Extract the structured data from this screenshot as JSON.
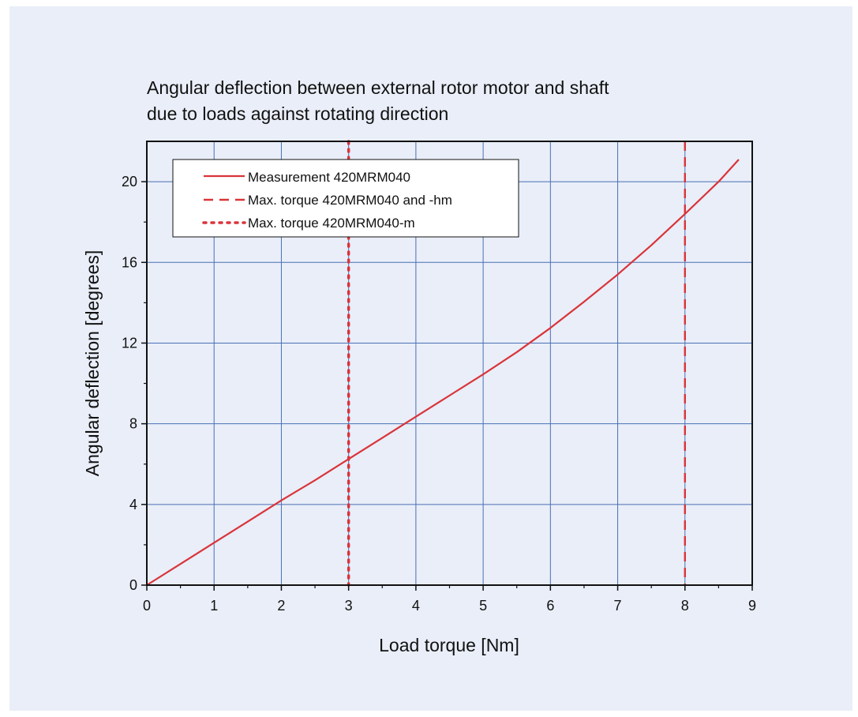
{
  "colors": {
    "background": "#e9eef8",
    "grid": "#4a6fb5",
    "series": "#d9343a",
    "axis": "#111111"
  },
  "chart_data": {
    "type": "line",
    "title_lines": [
      "Angular deflection between external rotor motor and shaft",
      "due to loads against rotating direction"
    ],
    "xlabel": "Load torque [Nm]",
    "ylabel": "Angular deflection [degrees]",
    "xlim": [
      0,
      9
    ],
    "ylim": [
      0,
      22
    ],
    "xticks": [
      0,
      1,
      2,
      3,
      4,
      5,
      6,
      7,
      8,
      9
    ],
    "yticks": [
      0,
      4,
      8,
      12,
      16,
      20
    ],
    "grid": true,
    "legend_position": "top-left",
    "series": [
      {
        "name": "Measurement 420MRM040",
        "style": "solid",
        "x": [
          0,
          0.5,
          1,
          1.5,
          2,
          2.5,
          3,
          3.5,
          4,
          4.5,
          5,
          5.5,
          6,
          6.5,
          7,
          7.5,
          8,
          8.5,
          8.8
        ],
        "y": [
          0,
          1.05,
          2.1,
          3.15,
          4.2,
          5.2,
          6.25,
          7.3,
          8.35,
          9.4,
          10.45,
          11.55,
          12.75,
          14.05,
          15.4,
          16.85,
          18.4,
          20.0,
          21.1
        ]
      }
    ],
    "reference_lines": [
      {
        "name": "Max. torque 420MRM040 and -hm",
        "style": "dashed",
        "x": 8
      },
      {
        "name": "Max. torque 420MRM040-m",
        "style": "dotted",
        "x": 3
      }
    ]
  }
}
